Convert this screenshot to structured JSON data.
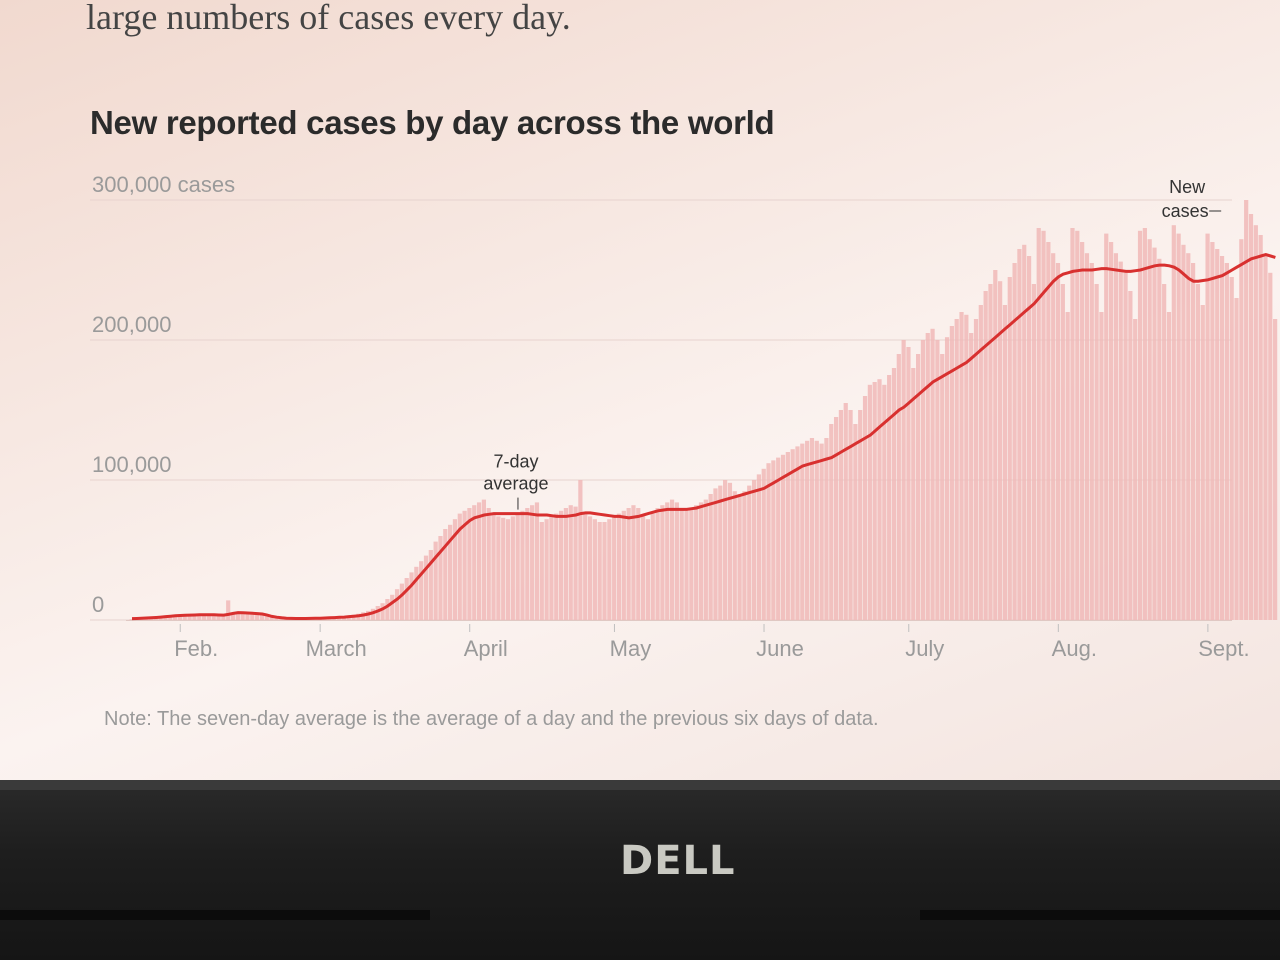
{
  "page": {
    "intro_text": "large numbers of cases every day.",
    "note": "Note: The seven-day average is the average of a day and the previous six days of data.",
    "bezel_logo": "DELL"
  },
  "colors": {
    "bar": "#f0b9b7",
    "line": "#d8302f",
    "grid": "#e7d3cf",
    "axis_text": "#9a9a9a",
    "annotation_text": "#333333"
  },
  "chart_data": {
    "type": "bar",
    "title": "New reported cases by day across the world",
    "ylim": [
      0,
      300000
    ],
    "y_ticks": [
      {
        "value": 0,
        "label": "0"
      },
      {
        "value": 100000,
        "label": "100,000"
      },
      {
        "value": 200000,
        "label": "200,000"
      },
      {
        "value": 300000,
        "label": "300,000 cases"
      }
    ],
    "x_ticks": [
      {
        "day": 10,
        "label": "Feb."
      },
      {
        "day": 39,
        "label": "March"
      },
      {
        "day": 70,
        "label": "April"
      },
      {
        "day": 100,
        "label": "May"
      },
      {
        "day": 131,
        "label": "June"
      },
      {
        "day": 161,
        "label": "July"
      },
      {
        "day": 192,
        "label": "Aug."
      },
      {
        "day": 223,
        "label": "Sept."
      }
    ],
    "x_range": [
      0,
      228
    ],
    "series": [
      {
        "name": "New cases",
        "type": "bar",
        "values": [
          600,
          700,
          800,
          1000,
          1200,
          1500,
          1800,
          2000,
          2200,
          2400,
          2600,
          2800,
          3000,
          3100,
          3200,
          3300,
          3400,
          3400,
          3300,
          3300,
          14000,
          4500,
          4400,
          4300,
          4200,
          4000,
          3800,
          3600,
          3400,
          2800,
          1500,
          1200,
          1000,
          1000,
          1100,
          1200,
          1300,
          1400,
          1500,
          1600,
          1700,
          1900,
          2100,
          2400,
          2800,
          3200,
          3800,
          4500,
          5500,
          6500,
          8000,
          10000,
          12000,
          15000,
          18000,
          22000,
          26000,
          30000,
          34000,
          38000,
          42000,
          46000,
          50000,
          56000,
          60000,
          65000,
          68000,
          72000,
          76000,
          78000,
          80000,
          82000,
          84000,
          86000,
          80000,
          75000,
          74000,
          73000,
          72000,
          74000,
          76000,
          78000,
          80000,
          82000,
          84000,
          70000,
          72000,
          74000,
          76000,
          78000,
          80000,
          82000,
          81000,
          100000,
          76000,
          74000,
          72000,
          70000,
          70000,
          72000,
          74000,
          76000,
          78000,
          80000,
          82000,
          80000,
          74000,
          72000,
          76000,
          80000,
          82000,
          84000,
          86000,
          84000,
          80000,
          78000,
          80000,
          82000,
          84000,
          86000,
          90000,
          94000,
          96000,
          100000,
          98000,
          92000,
          90000,
          92000,
          96000,
          100000,
          104000,
          108000,
          112000,
          114000,
          116000,
          118000,
          120000,
          122000,
          124000,
          126000,
          128000,
          130000,
          128000,
          126000,
          130000,
          140000,
          145000,
          150000,
          155000,
          150000,
          140000,
          150000,
          160000,
          168000,
          170000,
          172000,
          168000,
          175000,
          180000,
          190000,
          200000,
          195000,
          180000,
          190000,
          200000,
          205000,
          208000,
          200000,
          190000,
          202000,
          210000,
          215000,
          220000,
          218000,
          205000,
          215000,
          225000,
          235000,
          240000,
          250000,
          242000,
          225000,
          245000,
          255000,
          265000,
          268000,
          260000,
          240000,
          280000,
          278000,
          270000,
          262000,
          255000,
          240000,
          220000,
          280000,
          278000,
          270000,
          262000,
          255000,
          240000,
          220000,
          276000,
          270000,
          262000,
          256000,
          248000,
          235000,
          215000,
          278000,
          280000,
          272000,
          266000,
          258000,
          240000,
          220000,
          282000,
          276000,
          268000,
          262000,
          255000,
          240000,
          225000,
          276000,
          270000,
          265000,
          260000,
          255000,
          245000,
          230000,
          272000,
          300000,
          290000,
          282000,
          275000,
          260000,
          248000,
          215000
        ]
      },
      {
        "name": "7-day average",
        "type": "line",
        "values": [
          1000,
          1100,
          1200,
          1400,
          1600,
          1800,
          2100,
          2400,
          2700,
          3000,
          3200,
          3400,
          3500,
          3600,
          3700,
          3700,
          3700,
          3700,
          3600,
          3500,
          4000,
          4700,
          5300,
          5200,
          5000,
          4800,
          4600,
          4300,
          3500,
          2600,
          2000,
          1600,
          1300,
          1150,
          1100,
          1100,
          1100,
          1150,
          1200,
          1250,
          1400,
          1550,
          1700,
          1900,
          2100,
          2400,
          2700,
          3100,
          3600,
          4300,
          5200,
          6500,
          8000,
          10000,
          12500,
          15000,
          18000,
          21500,
          25000,
          29000,
          33000,
          37000,
          41000,
          45000,
          49000,
          53000,
          57000,
          61000,
          65000,
          68000,
          71000,
          73000,
          74000,
          75000,
          75500,
          76000,
          76000,
          76000,
          76000,
          76000,
          76000,
          76000,
          76000,
          75500,
          75000,
          75000,
          75000,
          74500,
          74000,
          74000,
          74000,
          74500,
          75000,
          76000,
          76500,
          76500,
          76000,
          75500,
          75000,
          74500,
          74000,
          74000,
          73500,
          73000,
          73500,
          74000,
          75000,
          76000,
          77000,
          78000,
          78500,
          79000,
          79000,
          79000,
          79000,
          79000,
          79500,
          80000,
          81000,
          82000,
          83000,
          84000,
          85000,
          86000,
          87000,
          88000,
          89000,
          90000,
          91000,
          92000,
          93000,
          94000,
          96000,
          98000,
          100000,
          102000,
          104000,
          106000,
          108000,
          110000,
          111000,
          112000,
          113000,
          114000,
          115000,
          116000,
          118000,
          120000,
          122000,
          124000,
          126000,
          128000,
          130000,
          132000,
          135000,
          138000,
          141000,
          144000,
          147000,
          150000,
          152000,
          155000,
          158000,
          161000,
          164000,
          167000,
          170000,
          172000,
          174000,
          176000,
          178000,
          180000,
          182000,
          184000,
          187000,
          190000,
          193000,
          196000,
          199000,
          202000,
          205000,
          208000,
          211000,
          214000,
          217000,
          220000,
          223000,
          226000,
          230000,
          234000,
          238000,
          242000,
          245000,
          247000,
          248000,
          249000,
          249500,
          250000,
          250000,
          250000,
          250500,
          251000,
          251000,
          250500,
          250000,
          249500,
          249000,
          249000,
          249500,
          250000,
          251000,
          252000,
          253000,
          253500,
          253500,
          253000,
          252000,
          250000,
          247000,
          244000,
          242000,
          242000,
          242500,
          243000,
          244000,
          245000,
          246000,
          248000,
          250000,
          252000,
          254000,
          256000,
          258000,
          259000,
          260000,
          261000,
          260000,
          259000
        ]
      }
    ],
    "annotations": [
      {
        "label_line1": "7-day",
        "label_line2": "average",
        "day": 80,
        "series": "7-day average"
      },
      {
        "label_line1": "New",
        "label_line2": "cases",
        "day": 227,
        "series": "New cases"
      }
    ],
    "grid": true
  }
}
